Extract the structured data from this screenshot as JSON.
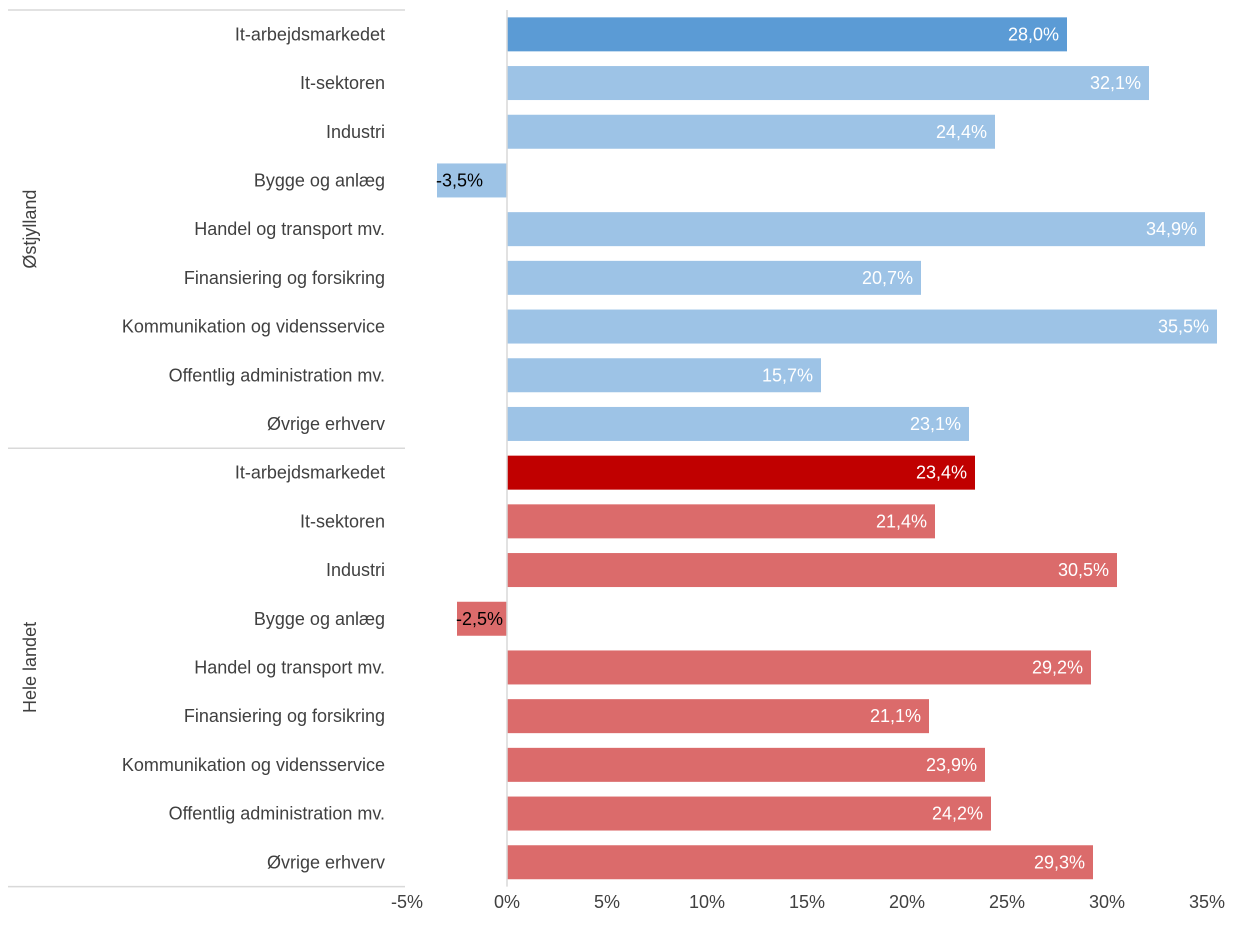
{
  "chart_data": {
    "type": "bar",
    "orientation": "horizontal",
    "title": "",
    "xlabel": "",
    "ylabel": "",
    "xlim": [
      -5,
      35
    ],
    "x_ticks": [
      -5,
      0,
      5,
      10,
      15,
      20,
      25,
      30,
      35
    ],
    "x_tick_labels": [
      "-5%",
      "0%",
      "5%",
      "10%",
      "15%",
      "20%",
      "25%",
      "30%",
      "35%"
    ],
    "grid": false,
    "legend": "none",
    "groups": [
      {
        "label": "Østjylland",
        "colors": {
          "highlight": "#5B9BD5",
          "bar": "#9DC3E6"
        },
        "categories": [
          "It-arbejdsmarkedet",
          "It-sektoren",
          "Industri",
          "Bygge og anlæg",
          "Handel og transport mv.",
          "Finansiering og forsikring",
          "Kommunikation og vidensservice",
          "Offentlig administration mv.",
          "Øvrige erhverv"
        ],
        "values": [
          28.0,
          32.1,
          24.4,
          -3.5,
          34.9,
          20.7,
          35.5,
          15.7,
          23.1
        ],
        "value_labels": [
          "28,0%",
          "32,1%",
          "24,4%",
          "-3,5%",
          "34,9%",
          "20,7%",
          "35,5%",
          "15,7%",
          "23,1%"
        ]
      },
      {
        "label": "Hele landet",
        "colors": {
          "highlight": "#C00000",
          "bar": "#DB6B6B"
        },
        "categories": [
          "It-arbejdsmarkedet",
          "It-sektoren",
          "Industri",
          "Bygge og anlæg",
          "Handel og transport mv.",
          "Finansiering og forsikring",
          "Kommunikation og vidensservice",
          "Offentlig administration mv.",
          "Øvrige erhverv"
        ],
        "values": [
          23.4,
          21.4,
          30.5,
          -2.5,
          29.2,
          21.1,
          23.9,
          24.2,
          29.3
        ],
        "value_labels": [
          "23,4%",
          "21,4%",
          "30,5%",
          "-2,5%",
          "29,2%",
          "21,1%",
          "23,9%",
          "24,2%",
          "29,3%"
        ]
      }
    ]
  }
}
